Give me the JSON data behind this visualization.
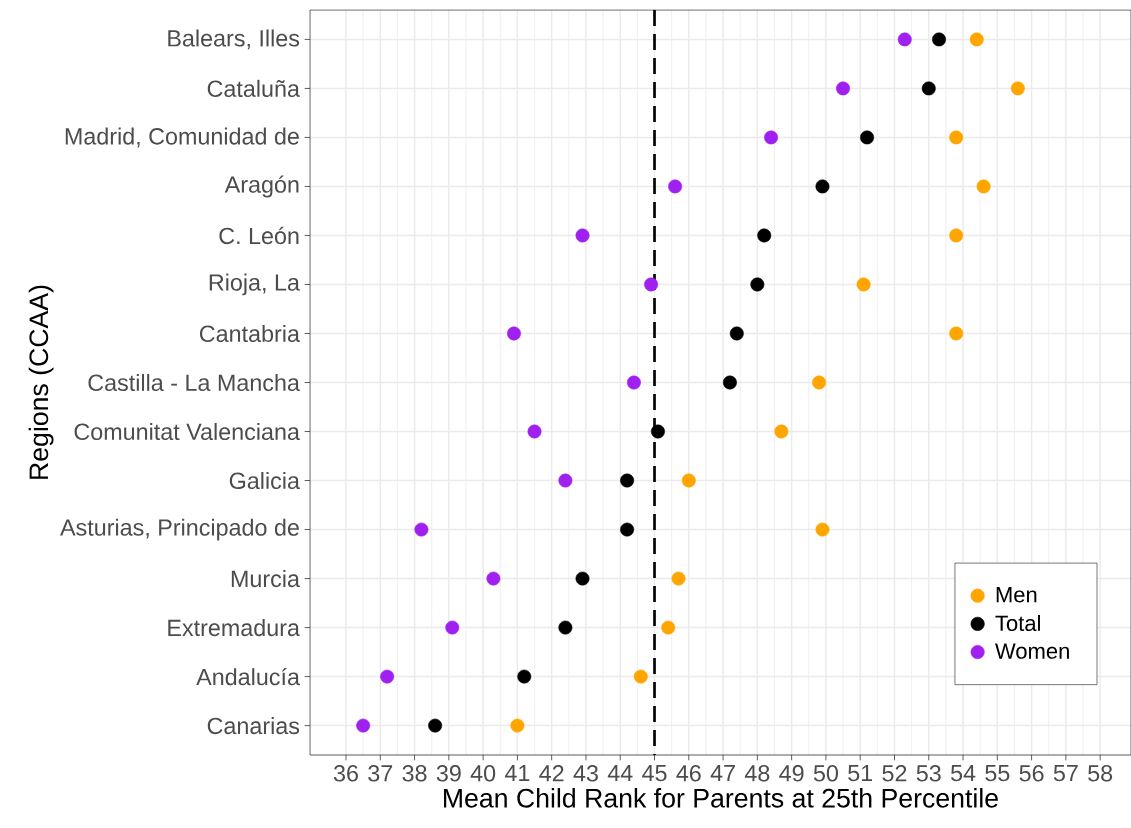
{
  "chart_data": {
    "type": "scatter",
    "orientation": "horizontal",
    "xlabel": "Mean Child Rank for Parents at 25th Percentile",
    "ylabel": "Regions (CCAA)",
    "categories": [
      "Balears, Illes",
      "Cataluña",
      "Madrid, Comunidad de",
      "Aragón",
      "C. León",
      "Rioja, La",
      "Cantabria",
      "Castilla - La Mancha",
      "Comunitat Valenciana",
      "Galicia",
      "Asturias, Principado de",
      "Murcia",
      "Extremadura",
      "Andalucía",
      "Canarias"
    ],
    "series": [
      {
        "name": "Men",
        "color": "#ffa500",
        "values": [
          54.4,
          55.6,
          53.8,
          54.6,
          53.8,
          51.1,
          53.8,
          49.8,
          48.7,
          46.0,
          49.9,
          45.7,
          45.4,
          44.6,
          41.0
        ]
      },
      {
        "name": "Total",
        "color": "#000000",
        "values": [
          53.3,
          53.0,
          51.2,
          49.9,
          48.2,
          48.0,
          47.4,
          47.2,
          45.1,
          44.2,
          44.2,
          42.9,
          42.4,
          41.2,
          38.6
        ]
      },
      {
        "name": "Women",
        "color": "#a020f0",
        "values": [
          52.3,
          50.5,
          48.4,
          45.6,
          42.9,
          44.9,
          40.9,
          44.4,
          41.5,
          42.4,
          38.2,
          40.3,
          39.1,
          37.2,
          36.5
        ]
      }
    ],
    "xlim": [
      34.95,
      58.9
    ],
    "xticks": [
      36,
      37,
      38,
      39,
      40,
      41,
      42,
      43,
      44,
      45,
      46,
      47,
      48,
      49,
      50,
      51,
      52,
      53,
      54,
      55,
      56,
      57,
      58
    ],
    "ref_lines": [
      {
        "axis": "x",
        "value": 45,
        "color": "#000000",
        "line_style": "dashed"
      }
    ],
    "grid": true,
    "legend": "bottom right",
    "marker": "circle"
  }
}
